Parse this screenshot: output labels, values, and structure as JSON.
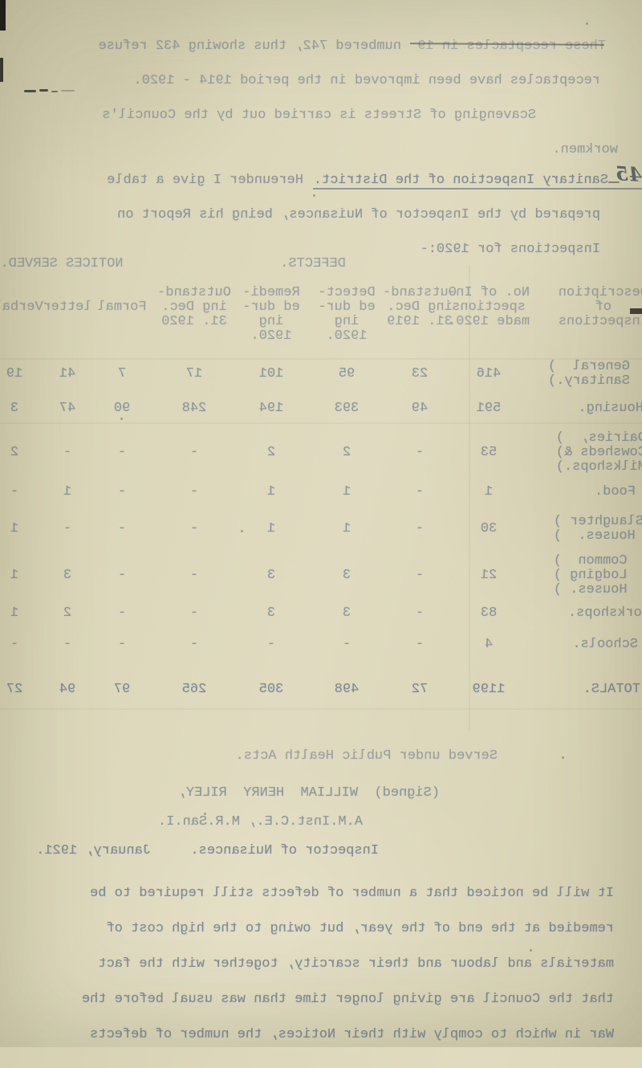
{
  "page": {
    "top_paragraph": {
      "line1_struck": "These receptacles in 19",
      "line1_rest": "  numbered 742, thus showing 432 refuse",
      "line2": "receptacles have been improved in the period 1914 - 1920.",
      "line3": "Scavenging of Streets is carried out by the Council's",
      "line4": "workmen."
    },
    "section": {
      "number": "45",
      "heading": "Sanitary Inspection of the District.",
      "heading_rest": "Hereunder I give a table",
      "line2": "prepared by the Inspector of Nuisances, being his Report on",
      "line3": "Inspections for 1920:-"
    },
    "table": {
      "group_headers": [
        "DEFECTS.",
        "NOTICES SERVED."
      ],
      "columns": [
        [
          "Description",
          "of",
          "Inspections"
        ],
        [
          "No. of In-",
          "spections",
          "made 1920."
        ],
        [
          "Outstand-",
          "ing Dec.",
          "31. 1919"
        ],
        [
          "Detect-",
          "ed dur-",
          "ing",
          "1920."
        ],
        [
          "Remedi-",
          "ed dur-",
          "ing",
          "1920."
        ],
        [
          "Outstand-",
          "ing Dec.",
          "31. 1920"
        ],
        [
          "",
          "Formal"
        ],
        [
          "",
          "letter"
        ],
        [
          "",
          "Verbal."
        ]
      ],
      "rows": [
        {
          "label": [
            "General  )",
            "Sanitary.)"
          ],
          "values": [
            "416",
            "23",
            "95",
            "101",
            "17",
            "7",
            "41",
            "19"
          ]
        },
        {
          "label": [
            "Housing."
          ],
          "values": [
            "591",
            "49",
            "393",
            "194",
            "248",
            "90",
            "47",
            "3"
          ]
        },
        {
          "label": [
            "Dairies,  )",
            "Cowsheds &)",
            "Milkshops.)"
          ],
          "values": [
            "53",
            "-",
            "2",
            "2",
            "-",
            "-",
            "-",
            "2"
          ]
        },
        {
          "label": [
            "Food."
          ],
          "values": [
            "1",
            "-",
            "1",
            "1",
            "-",
            "-",
            "1",
            "-"
          ]
        },
        {
          "label": [
            "Slaughter )",
            " Houses.  )"
          ],
          "values": [
            "30",
            "-",
            "1",
            "1",
            "-",
            "-",
            "-",
            "1"
          ]
        },
        {
          "label": [
            "  Common  )",
            "  Lodging )",
            "  Houses. )"
          ],
          "values": [
            "21",
            "-",
            "3",
            "3",
            "-",
            "-",
            "3",
            "1"
          ]
        },
        {
          "label": [
            "Workshops."
          ],
          "values": [
            "83",
            "-",
            "3",
            "3",
            "-",
            "-",
            "2",
            "1"
          ]
        },
        {
          "label": [
            "Schools."
          ],
          "values": [
            "4",
            "-",
            "-",
            "-",
            "-",
            "-",
            "-",
            "-"
          ]
        },
        {
          "label": [
            "TOTALS."
          ],
          "values": [
            "1199",
            "72",
            "498",
            "305",
            "265",
            "97",
            "94",
            "27"
          ]
        }
      ],
      "footnote": "Served under Public Health Acts."
    },
    "signature": {
      "signed_line": "(Signed)  WILLIAM  HENRY  RILEY,",
      "qualifications": "A.M.Inst.C.E., M.R.San.I.",
      "title": "Inspector of Nuisances.",
      "date": "January, 1921."
    },
    "closing_paragraph": [
      "It will be noticed that a number of defects still required to be",
      "remedied at the end of the year, but owing to the high cost of",
      "materials and labour and their scarcity, together with the fact",
      "that the Council are giving longer time than was usual before the",
      "War in which to comply with their Notices, the number of defects"
    ]
  },
  "colors": {
    "paper": "#dcd7ba",
    "ink": "#64748c",
    "pen": "#2a3036",
    "film_edge": "#211f1a"
  }
}
